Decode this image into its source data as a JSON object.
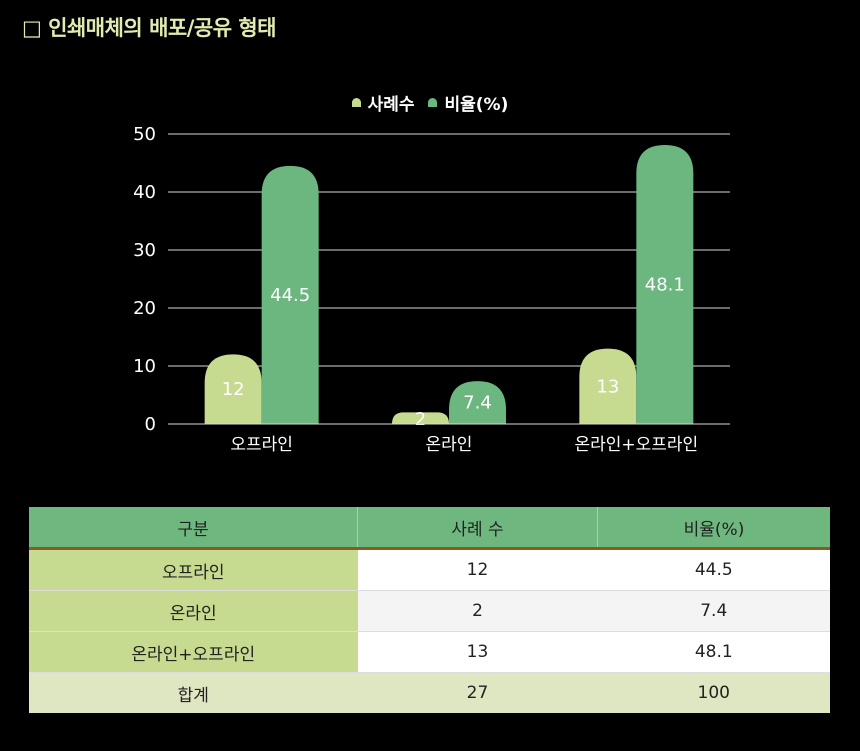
{
  "title": "□ 인쇄매체의 배포/공유 형태",
  "colors": {
    "series1": "#c7db90",
    "series2": "#6cb780",
    "title": "#e2ebb0"
  },
  "chart_data": {
    "type": "bar",
    "categories": [
      "오프라인",
      "온라인",
      "온라인+오프라인"
    ],
    "series": [
      {
        "name": "사례수",
        "values": [
          12,
          2,
          13
        ]
      },
      {
        "name": "비율(%)",
        "values": [
          44.5,
          7.4,
          48.1
        ]
      }
    ],
    "ylim": [
      0,
      50
    ],
    "yticks": [
      0,
      10,
      20,
      30,
      40,
      50
    ],
    "legend": "top",
    "grid": true
  },
  "table": {
    "headers": [
      "구분",
      "사례 수",
      "비율(%)"
    ],
    "rows": [
      [
        "오프라인",
        "12",
        "44.5"
      ],
      [
        "온라인",
        "2",
        "7.4"
      ],
      [
        "온라인+오프라인",
        "13",
        "48.1"
      ]
    ],
    "total": [
      "합계",
      "27",
      "100"
    ]
  }
}
